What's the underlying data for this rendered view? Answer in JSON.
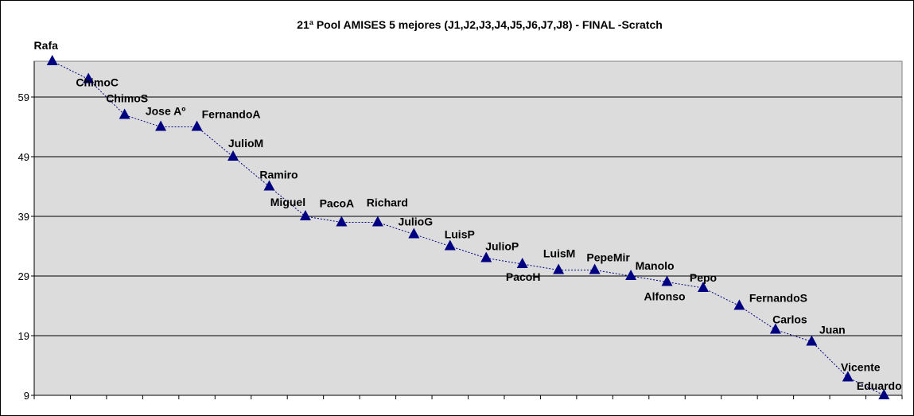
{
  "chart_data": {
    "type": "line",
    "title": "21ª Pool AMISES 5 mejores (J1,J2,J3,J4,J5,J6,J7,J8) - FINAL -Scratch",
    "xlabel": "",
    "ylabel": "",
    "categories": [
      "Rafa",
      "ChimoC",
      "ChimoS",
      "Jose Aº",
      "FernandoA",
      "JulioM",
      "Ramiro",
      "Miguel",
      "PacoA",
      "Richard",
      "JulioG",
      "LuisP",
      "JulioP",
      "PacoH",
      "LuisM",
      "PepeMir",
      "Manolo",
      "Alfonso",
      "Pepo",
      "FernandoS",
      "Carlos",
      "Juan",
      "Vicente",
      "Eduardo"
    ],
    "values": [
      65,
      62,
      56,
      54,
      54,
      49,
      44,
      39,
      38,
      38,
      36,
      34,
      32,
      31,
      30,
      30,
      29,
      28,
      27,
      24,
      20,
      18,
      12,
      9
    ],
    "ylim": [
      9,
      65
    ],
    "yticks": [
      9,
      19,
      29,
      39,
      49,
      59
    ],
    "grid": true,
    "legend": "none",
    "colors": {
      "marker": "#000080",
      "line": "#000080",
      "plot_bg": "#DCDCDC",
      "grid": "#000000"
    },
    "marker": "triangle",
    "line_style": "dashed"
  }
}
